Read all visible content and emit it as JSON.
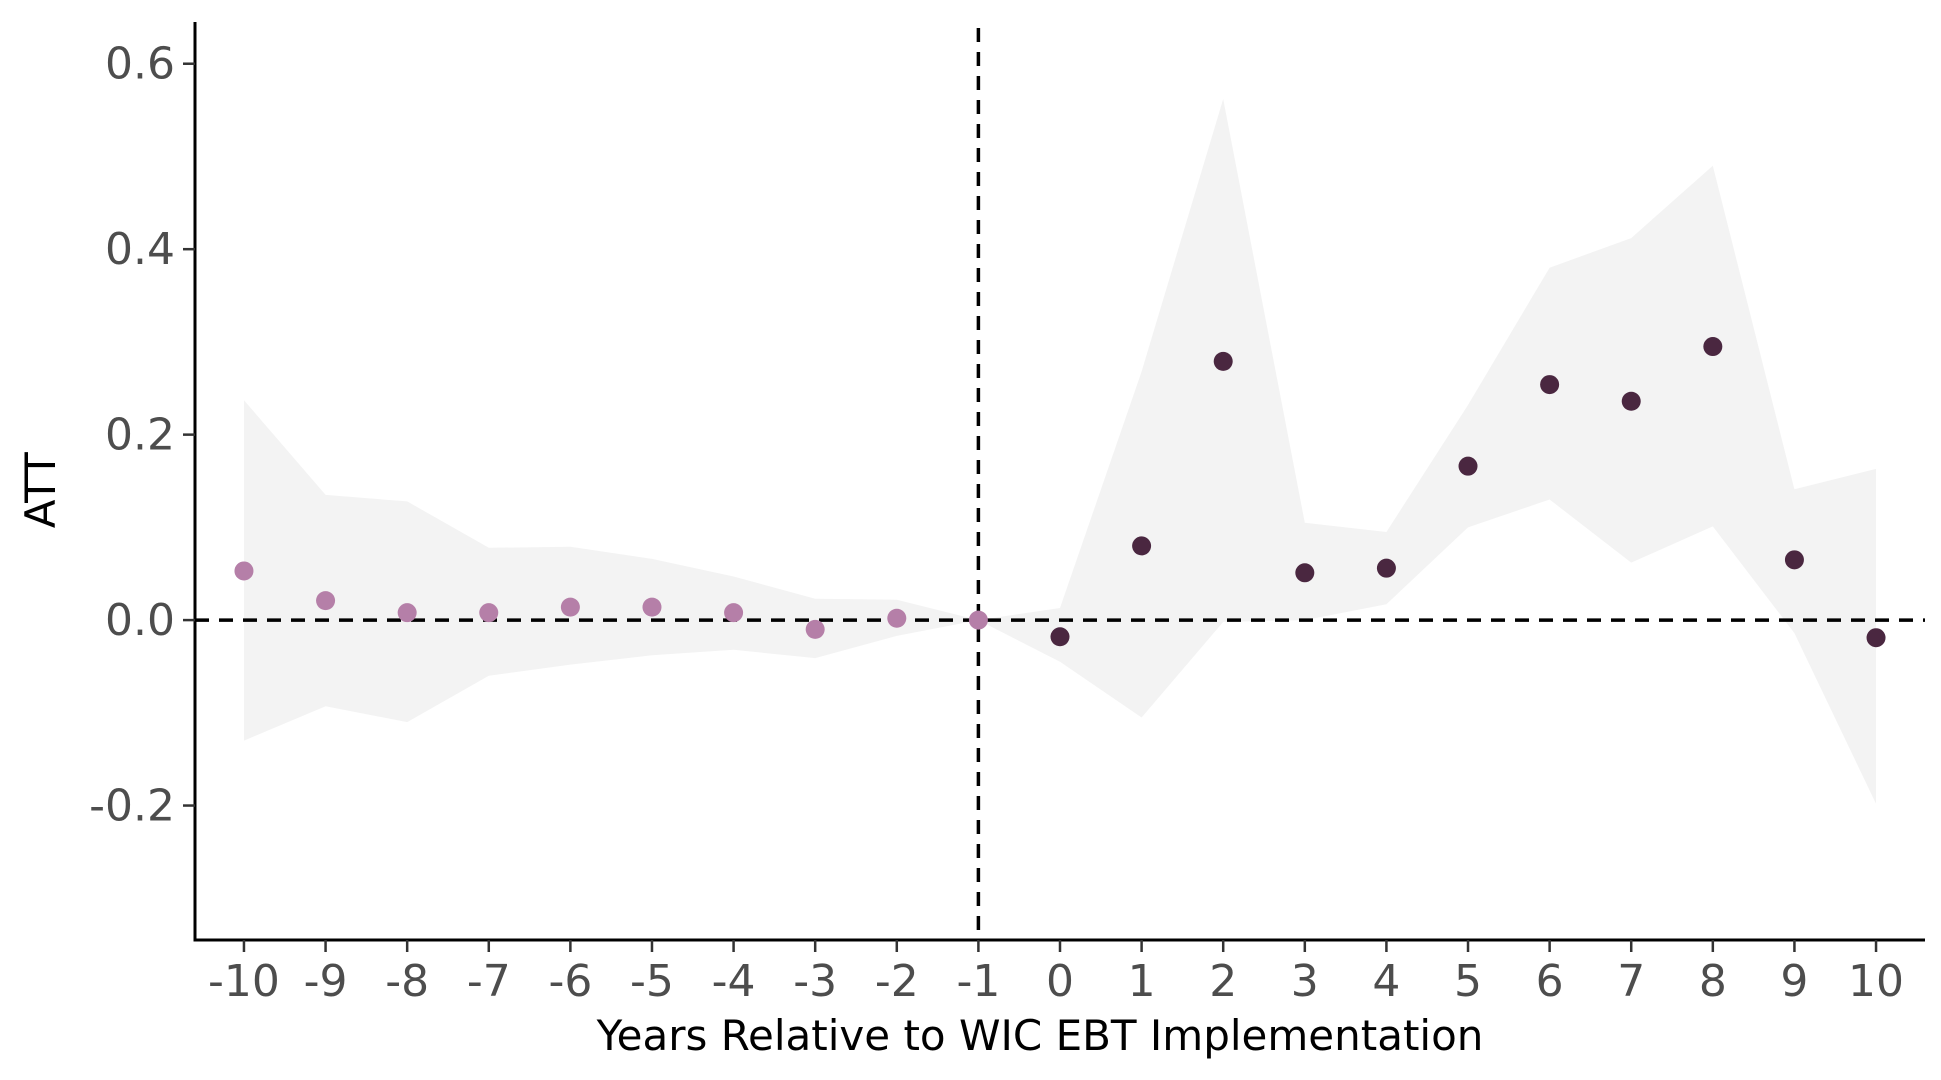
{
  "chart_data": {
    "type": "scatter",
    "xlabel": "Years Relative to WIC EBT Implementation",
    "ylabel": "ATT",
    "xlim": [
      -10.6,
      10.6
    ],
    "ylim": [
      -0.345,
      0.645
    ],
    "x_ticks": [
      -10,
      -9,
      -8,
      -7,
      -6,
      -5,
      -4,
      -3,
      -2,
      -1,
      0,
      1,
      2,
      3,
      4,
      5,
      6,
      7,
      8,
      9,
      10
    ],
    "x_tick_labels": [
      "-10",
      "-9",
      "-8",
      "-7",
      "-6",
      "-5",
      "-4",
      "-3",
      "-2",
      "-1",
      "0",
      "1",
      "2",
      "3",
      "4",
      "5",
      "6",
      "7",
      "8",
      "9",
      "10"
    ],
    "y_ticks": [
      -0.2,
      0.0,
      0.2,
      0.4,
      0.6
    ],
    "y_tick_labels": [
      "-0.2",
      "0.0",
      "0.2",
      "0.4",
      "0.6"
    ],
    "grid": false,
    "reference_lines": {
      "horizontal_y": 0,
      "vertical_x": -1,
      "style": "dashed"
    },
    "series": [
      {
        "period": "pre",
        "color": "#b57fa8",
        "points": [
          {
            "x": -10,
            "y": 0.053
          },
          {
            "x": -9,
            "y": 0.021
          },
          {
            "x": -8,
            "y": 0.008
          },
          {
            "x": -7,
            "y": 0.008
          },
          {
            "x": -6,
            "y": 0.014
          },
          {
            "x": -5,
            "y": 0.014
          },
          {
            "x": -4,
            "y": 0.008
          },
          {
            "x": -3,
            "y": -0.01
          },
          {
            "x": -2,
            "y": 0.002
          },
          {
            "x": -1,
            "y": 0.0
          }
        ]
      },
      {
        "period": "post",
        "color": "#4a2740",
        "points": [
          {
            "x": 0,
            "y": -0.018
          },
          {
            "x": 1,
            "y": 0.08
          },
          {
            "x": 2,
            "y": 0.279
          },
          {
            "x": 3,
            "y": 0.051
          },
          {
            "x": 4,
            "y": 0.056
          },
          {
            "x": 5,
            "y": 0.166
          },
          {
            "x": 6,
            "y": 0.254
          },
          {
            "x": 7,
            "y": 0.236
          },
          {
            "x": 8,
            "y": 0.295
          },
          {
            "x": 9,
            "y": 0.065
          },
          {
            "x": 10,
            "y": -0.019
          }
        ]
      }
    ],
    "confidence_band": {
      "color": "#f3f3f3",
      "points": [
        {
          "x": -10,
          "lower": -0.13,
          "upper": 0.237
        },
        {
          "x": -9,
          "lower": -0.093,
          "upper": 0.135
        },
        {
          "x": -8,
          "lower": -0.11,
          "upper": 0.128
        },
        {
          "x": -7,
          "lower": -0.06,
          "upper": 0.078
        },
        {
          "x": -6,
          "lower": -0.048,
          "upper": 0.079
        },
        {
          "x": -5,
          "lower": -0.038,
          "upper": 0.066
        },
        {
          "x": -4,
          "lower": -0.032,
          "upper": 0.047
        },
        {
          "x": -3,
          "lower": -0.041,
          "upper": 0.023
        },
        {
          "x": -2,
          "lower": -0.017,
          "upper": 0.022
        },
        {
          "x": -1,
          "lower": 0.0,
          "upper": 0.0
        },
        {
          "x": 0,
          "lower": -0.045,
          "upper": 0.013
        },
        {
          "x": 1,
          "lower": -0.105,
          "upper": 0.268
        },
        {
          "x": 2,
          "lower": -0.002,
          "upper": 0.562
        },
        {
          "x": 3,
          "lower": 0.0,
          "upper": 0.105
        },
        {
          "x": 4,
          "lower": 0.017,
          "upper": 0.095
        },
        {
          "x": 5,
          "lower": 0.1,
          "upper": 0.232
        },
        {
          "x": 6,
          "lower": 0.13,
          "upper": 0.38
        },
        {
          "x": 7,
          "lower": 0.062,
          "upper": 0.412
        },
        {
          "x": 8,
          "lower": 0.101,
          "upper": 0.49
        },
        {
          "x": 9,
          "lower": -0.014,
          "upper": 0.141
        },
        {
          "x": 10,
          "lower": -0.198,
          "upper": 0.163
        }
      ]
    }
  }
}
